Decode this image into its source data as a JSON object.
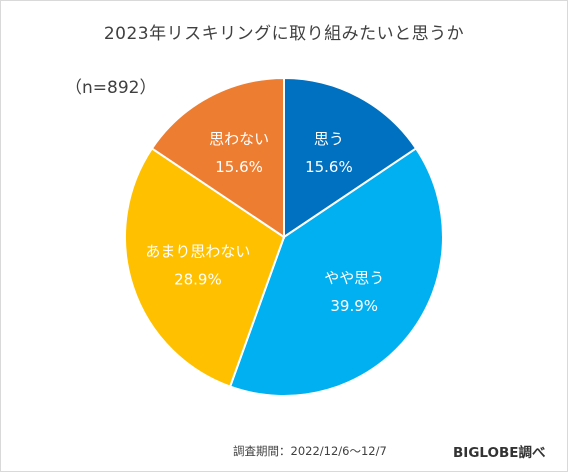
{
  "chart_data": {
    "type": "pie",
    "title": "2023年リスキリングに取り組みたいと思うか",
    "sample_size": "（n=892）",
    "start_angle_deg": 0,
    "direction": "clockwise",
    "slices": [
      {
        "label": "思う",
        "value": 15.6,
        "value_label": "15.6%",
        "color": "#0070c0"
      },
      {
        "label": "やや思う",
        "value": 39.9,
        "value_label": "39.9%",
        "color": "#00b0f0"
      },
      {
        "label": "あまり思わない",
        "value": 28.9,
        "value_label": "28.9%",
        "color": "#ffc000"
      },
      {
        "label": "思わない",
        "value": 15.6,
        "value_label": "15.6%",
        "color": "#ed7d31"
      }
    ]
  },
  "footer": {
    "survey_period": "調査期間：2022/12/6～12/7",
    "source": "BIGLOBE調べ"
  }
}
